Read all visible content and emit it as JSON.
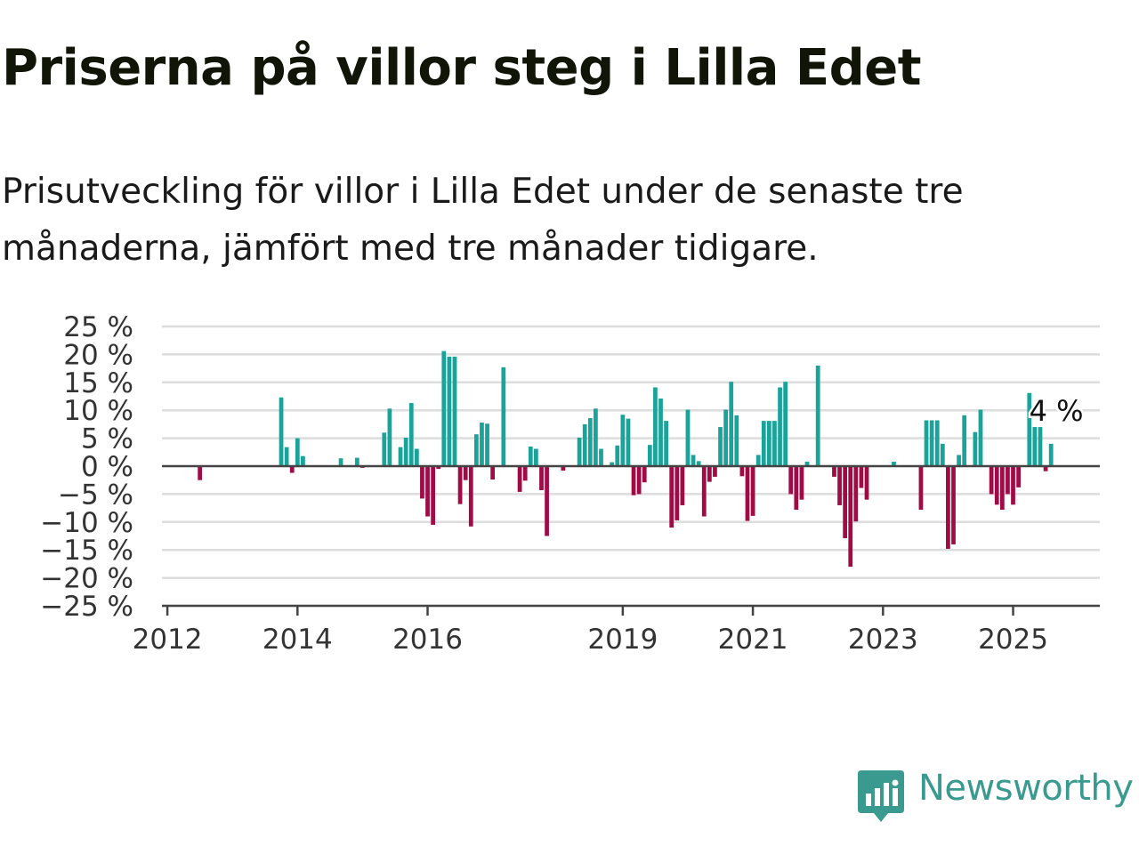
{
  "title": "Priserna på villor steg i Lilla Edet",
  "subtitle": "Prisutveckling för villor i Lilla Edet under de senaste tre månaderna, jämfört med tre månader tidigare.",
  "logo": {
    "text": "Newsworthy",
    "icon": "newsworthy-chart-bubble-icon"
  },
  "colors": {
    "positive": "#1aa39a",
    "negative": "#a00a45",
    "zero_line": "#444444",
    "grid": "#dddddd",
    "brand": "#3a9a8f"
  },
  "chart_data": {
    "type": "bar",
    "title": "",
    "xlabel": "",
    "ylabel": "",
    "ylim": [
      -25,
      25
    ],
    "xlim": [
      "2011-12",
      "2026-05"
    ],
    "y_ticks": [
      "25 %",
      "20 %",
      "15 %",
      "10 %",
      "5 %",
      "0 %",
      "−5 %",
      "−10 %",
      "−15 %",
      "−20 %",
      "−25 %"
    ],
    "y_tick_values": [
      25,
      20,
      15,
      10,
      5,
      0,
      -5,
      -10,
      -15,
      -20,
      -25
    ],
    "x_ticks": [
      "2012",
      "2014",
      "2016",
      "2019",
      "2021",
      "2023",
      "2025"
    ],
    "x_tick_dates": [
      "2012-01",
      "2014-01",
      "2016-01",
      "2019-01",
      "2021-01",
      "2023-01",
      "2025-01"
    ],
    "grid": true,
    "legend": "none",
    "annotation": {
      "text": "4 %",
      "month": "2025-07",
      "value": 4
    },
    "series": [
      {
        "points": [
          [
            "2012-07",
            -2.5
          ],
          [
            "2013-10",
            12.3
          ],
          [
            "2013-11",
            3.4
          ],
          [
            "2013-12",
            -1.2
          ],
          [
            "2014-01",
            5.0
          ],
          [
            "2014-02",
            1.8
          ],
          [
            "2014-09",
            1.4
          ],
          [
            "2014-12",
            1.5
          ],
          [
            "2015-01",
            -0.3
          ],
          [
            "2015-05",
            6.0
          ],
          [
            "2015-06",
            10.3
          ],
          [
            "2015-08",
            3.4
          ],
          [
            "2015-09",
            5.1
          ],
          [
            "2015-10",
            11.3
          ],
          [
            "2015-11",
            3.1
          ],
          [
            "2015-12",
            -5.8
          ],
          [
            "2016-01",
            -9.0
          ],
          [
            "2016-02",
            -10.5
          ],
          [
            "2016-03",
            -0.5
          ],
          [
            "2016-04",
            20.6
          ],
          [
            "2016-05",
            19.6
          ],
          [
            "2016-06",
            19.6
          ],
          [
            "2016-07",
            -6.8
          ],
          [
            "2016-08",
            -2.5
          ],
          [
            "2016-09",
            -10.8
          ],
          [
            "2016-10",
            5.7
          ],
          [
            "2016-11",
            7.8
          ],
          [
            "2016-12",
            7.6
          ],
          [
            "2017-01",
            -2.4
          ],
          [
            "2017-03",
            17.7
          ],
          [
            "2017-06",
            -4.6
          ],
          [
            "2017-07",
            -2.6
          ],
          [
            "2017-08",
            3.5
          ],
          [
            "2017-09",
            3.1
          ],
          [
            "2017-10",
            -4.3
          ],
          [
            "2017-11",
            -12.5
          ],
          [
            "2018-02",
            -0.8
          ],
          [
            "2018-05",
            5.1
          ],
          [
            "2018-06",
            7.5
          ],
          [
            "2018-07",
            8.6
          ],
          [
            "2018-08",
            10.3
          ],
          [
            "2018-09",
            3.1
          ],
          [
            "2018-11",
            0.7
          ],
          [
            "2018-12",
            3.7
          ],
          [
            "2019-01",
            9.2
          ],
          [
            "2019-02",
            8.5
          ],
          [
            "2019-03",
            -5.2
          ],
          [
            "2019-04",
            -5.0
          ],
          [
            "2019-05",
            -2.9
          ],
          [
            "2019-06",
            3.8
          ],
          [
            "2019-07",
            14.1
          ],
          [
            "2019-08",
            12.1
          ],
          [
            "2019-09",
            8.1
          ],
          [
            "2019-10",
            -11.0
          ],
          [
            "2019-11",
            -9.7
          ],
          [
            "2019-12",
            -7.0
          ],
          [
            "2020-01",
            10.1
          ],
          [
            "2020-02",
            2.0
          ],
          [
            "2020-03",
            0.9
          ],
          [
            "2020-04",
            -9.0
          ],
          [
            "2020-05",
            -2.8
          ],
          [
            "2020-06",
            -1.9
          ],
          [
            "2020-07",
            7.0
          ],
          [
            "2020-08",
            10.1
          ],
          [
            "2020-09",
            15.1
          ],
          [
            "2020-10",
            9.1
          ],
          [
            "2020-11",
            -1.8
          ],
          [
            "2020-12",
            -9.8
          ],
          [
            "2021-01",
            -8.9
          ],
          [
            "2021-02",
            2.0
          ],
          [
            "2021-03",
            8.1
          ],
          [
            "2021-04",
            8.1
          ],
          [
            "2021-05",
            8.1
          ],
          [
            "2021-06",
            14.1
          ],
          [
            "2021-07",
            15.1
          ],
          [
            "2021-08",
            -5.0
          ],
          [
            "2021-09",
            -7.8
          ],
          [
            "2021-10",
            -6.0
          ],
          [
            "2021-11",
            0.8
          ],
          [
            "2022-01",
            18.0
          ],
          [
            "2022-04",
            -1.9
          ],
          [
            "2022-05",
            -7.0
          ],
          [
            "2022-06",
            -12.9
          ],
          [
            "2022-07",
            -18.0
          ],
          [
            "2022-08",
            -9.9
          ],
          [
            "2022-09",
            -3.9
          ],
          [
            "2022-10",
            -6.0
          ],
          [
            "2023-03",
            0.8
          ],
          [
            "2023-08",
            -7.8
          ],
          [
            "2023-09",
            8.2
          ],
          [
            "2023-10",
            8.2
          ],
          [
            "2023-11",
            8.2
          ],
          [
            "2023-12",
            4.0
          ],
          [
            "2024-01",
            -14.8
          ],
          [
            "2024-02",
            -14.0
          ],
          [
            "2024-03",
            2.0
          ],
          [
            "2024-04",
            9.1
          ],
          [
            "2024-06",
            6.1
          ],
          [
            "2024-07",
            10.1
          ],
          [
            "2024-09",
            -5.0
          ],
          [
            "2024-10",
            -6.9
          ],
          [
            "2024-11",
            -7.8
          ],
          [
            "2024-12",
            -5.0
          ],
          [
            "2025-01",
            -6.9
          ],
          [
            "2025-02",
            -3.8
          ],
          [
            "2025-04",
            13.1
          ],
          [
            "2025-05",
            7.0
          ],
          [
            "2025-06",
            7.0
          ],
          [
            "2025-07",
            -0.9
          ],
          [
            "2025-08",
            4.0
          ]
        ]
      }
    ]
  }
}
